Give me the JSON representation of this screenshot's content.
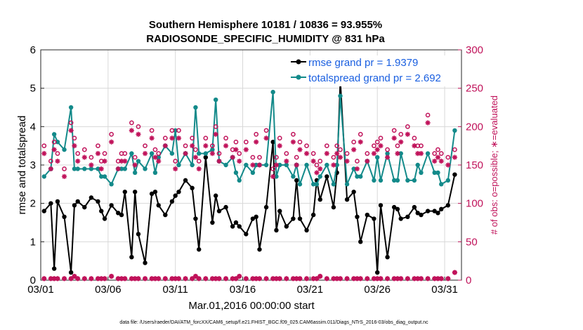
{
  "chart_data": {
    "type": "line",
    "title": "Southern Hemisphere 10181 / 10836 = 93.955%",
    "subtitle": "RADIOSONDE_SPECIFIC_HUMIDITY @ 831 hPa",
    "xlabel": "Mar.01,2016 00:00:00 start",
    "ylabel": "rmse and totalspread",
    "y2label": "# of obs: o=possible; ∗=evaluated",
    "footer": "data file: /Users/raeder/DAI/ATM_forcXX/CAM6_setup/f.e21.FHIST_BGC.f09_025.CAM6assim.011/Diags_NTrS_2016-03/obs_diag_output.nc",
    "x_tick_labels": [
      "03/01",
      "03/06",
      "03/11",
      "03/16",
      "03/21",
      "03/26",
      "03/31"
    ],
    "x_tick_days": [
      1,
      6,
      11,
      16,
      21,
      26,
      31
    ],
    "xlim": [
      1,
      32.25
    ],
    "ylim": [
      0,
      6
    ],
    "y_ticks": [
      "0",
      "1",
      "2",
      "3",
      "4",
      "5",
      "6"
    ],
    "y2lim": [
      0,
      300
    ],
    "y2_ticks": [
      "0",
      "50",
      "100",
      "150",
      "200",
      "250",
      "300"
    ],
    "grid": true,
    "legend": [
      {
        "label": "rmse grand pr = 1.9379",
        "color": "#000000"
      },
      {
        "label": "totalspread grand pr = 2.692",
        "color": "#138a8a"
      }
    ],
    "legend_position": "top-right",
    "x": [
      1.25,
      1.75,
      2.0,
      2.25,
      2.75,
      3.25,
      3.5,
      3.75,
      4.25,
      4.75,
      5.25,
      5.5,
      5.75,
      6.25,
      6.75,
      7.0,
      7.25,
      7.75,
      8.0,
      8.25,
      8.75,
      9.25,
      9.5,
      9.75,
      10.25,
      10.75,
      11.0,
      11.25,
      11.75,
      12.25,
      12.5,
      12.75,
      13.25,
      13.75,
      14.0,
      14.25,
      14.75,
      15.25,
      15.5,
      15.75,
      16.25,
      16.75,
      17.0,
      17.25,
      17.75,
      18.25,
      18.5,
      18.75,
      19.25,
      19.75,
      20.0,
      20.25,
      20.75,
      21.25,
      21.5,
      21.75,
      22.25,
      22.75,
      23.0,
      23.25,
      23.75,
      24.25,
      24.5,
      24.75,
      25.25,
      25.75,
      26.0,
      26.25,
      26.75,
      27.25,
      27.5,
      27.75,
      28.25,
      28.75,
      29.0,
      29.25,
      29.75,
      30.25,
      30.5,
      30.75,
      31.25,
      31.75
    ],
    "series": [
      {
        "name": "rmse",
        "color": "#000000",
        "values": [
          1.8,
          2.0,
          0.3,
          2.05,
          1.65,
          0.2,
          1.95,
          2.05,
          1.9,
          2.15,
          2.05,
          1.8,
          1.6,
          1.95,
          1.75,
          1.7,
          2.3,
          0.6,
          2.3,
          1.2,
          0.45,
          2.25,
          2.3,
          1.95,
          1.7,
          2.05,
          2.2,
          2.3,
          2.6,
          2.4,
          1.6,
          0.8,
          3.2,
          1.5,
          2.2,
          1.8,
          1.9,
          1.4,
          1.5,
          1.4,
          1.2,
          1.6,
          1.65,
          0.8,
          1.9,
          3.6,
          1.3,
          1.8,
          1.4,
          1.6,
          2.6,
          1.6,
          1.3,
          1.7,
          2.6,
          2.1,
          2.7,
          1.9,
          2.8,
          5.2,
          2.1,
          2.3,
          1.65,
          1.0,
          1.7,
          1.6,
          0.2,
          1.95,
          0.6,
          1.9,
          1.85,
          1.6,
          1.65,
          1.9,
          1.75,
          1.7,
          1.8,
          1.8,
          1.75,
          1.85,
          1.95,
          2.75
        ]
      },
      {
        "name": "totalspread",
        "color": "#138a8a",
        "values": [
          2.7,
          2.9,
          3.8,
          3.6,
          3.4,
          4.5,
          2.9,
          2.9,
          2.9,
          2.9,
          2.9,
          2.7,
          2.7,
          2.5,
          2.9,
          2.9,
          2.9,
          3.3,
          2.8,
          3.1,
          2.9,
          3.3,
          2.8,
          3.2,
          3.5,
          3.3,
          3.9,
          3.0,
          3.3,
          3.0,
          4.5,
          3.3,
          3.3,
          3.4,
          4.7,
          3.1,
          3.0,
          3.2,
          2.8,
          2.6,
          3.0,
          2.8,
          3.0,
          3.0,
          3.0,
          4.9,
          2.7,
          3.0,
          3.0,
          2.7,
          3.0,
          2.5,
          3.0,
          2.5,
          2.5,
          2.7,
          3.0,
          2.5,
          3.0,
          4.8,
          2.5,
          2.9,
          2.7,
          2.7,
          3.1,
          2.6,
          3.2,
          2.6,
          3.3,
          2.6,
          2.6,
          3.3,
          2.6,
          2.6,
          3.0,
          2.8,
          3.3,
          2.8,
          2.8,
          2.5,
          2.6,
          3.9
        ]
      },
      {
        "name": "obs possible",
        "axis": "right",
        "color": "#c0125a",
        "marker": "o",
        "values": [
          175,
          155,
          180,
          165,
          145,
          205,
          185,
          165,
          170,
          160,
          175,
          155,
          165,
          190,
          155,
          165,
          165,
          205,
          160,
          200,
          175,
          195,
          170,
          165,
          185,
          195,
          155,
          195,
          175,
          185,
          170,
          155,
          185,
          175,
          200,
          165,
          185,
          170,
          180,
          165,
          180,
          160,
          190,
          160,
          195,
          145,
          160,
          185,
          165,
          190,
          160,
          180,
          175,
          165,
          150,
          155,
          175,
          160,
          175,
          170,
          165,
          180,
          155,
          190,
          165,
          175,
          180,
          185,
          170,
          195,
          175,
          190,
          200,
          185,
          175,
          175,
          215,
          165,
          170,
          165,
          160,
          170
        ]
      },
      {
        "name": "obs evaluated",
        "axis": "right",
        "color": "#c0125a",
        "marker": "*",
        "values": [
          165,
          145,
          170,
          155,
          135,
          195,
          175,
          155,
          160,
          150,
          165,
          145,
          155,
          180,
          145,
          155,
          155,
          195,
          150,
          190,
          165,
          185,
          160,
          155,
          175,
          185,
          145,
          185,
          165,
          175,
          160,
          145,
          175,
          165,
          190,
          155,
          175,
          160,
          170,
          155,
          170,
          150,
          180,
          150,
          185,
          135,
          150,
          175,
          155,
          180,
          150,
          170,
          165,
          155,
          140,
          145,
          165,
          150,
          165,
          160,
          155,
          170,
          145,
          180,
          155,
          165,
          170,
          175,
          160,
          185,
          165,
          180,
          190,
          175,
          165,
          165,
          205,
          155,
          160,
          155,
          150,
          160
        ]
      },
      {
        "name": "bottom possible",
        "axis": "right",
        "color": "#c0125a",
        "marker": "o",
        "values": [
          2,
          2,
          2,
          2,
          2,
          2,
          5,
          2,
          2,
          2,
          2,
          2,
          2,
          5,
          2,
          2,
          2,
          2,
          2,
          2,
          2,
          2,
          2,
          2,
          2,
          2,
          2,
          2,
          2,
          2,
          5,
          2,
          2,
          2,
          2,
          2,
          2,
          2,
          2,
          5,
          2,
          2,
          2,
          2,
          2,
          2,
          2,
          2,
          2,
          2,
          2,
          2,
          2,
          2,
          2,
          5,
          2,
          2,
          2,
          2,
          2,
          2,
          2,
          2,
          2,
          2,
          2,
          2,
          2,
          2,
          2,
          2,
          2,
          2,
          2,
          2,
          2,
          2,
          2,
          2,
          2,
          10
        ]
      },
      {
        "name": "bottom evaluated",
        "axis": "right",
        "color": "#c0125a",
        "marker": "*",
        "values": [
          2,
          2,
          2,
          2,
          2,
          2,
          5,
          2,
          2,
          2,
          2,
          2,
          2,
          5,
          2,
          2,
          2,
          2,
          2,
          2,
          2,
          2,
          2,
          2,
          2,
          2,
          2,
          2,
          2,
          2,
          5,
          2,
          2,
          2,
          2,
          2,
          2,
          2,
          2,
          5,
          2,
          2,
          2,
          2,
          2,
          2,
          2,
          2,
          2,
          2,
          2,
          2,
          2,
          2,
          2,
          5,
          2,
          2,
          2,
          2,
          2,
          2,
          2,
          2,
          2,
          2,
          2,
          2,
          2,
          2,
          2,
          2,
          2,
          2,
          2,
          2,
          2,
          2,
          2,
          2,
          2,
          10
        ]
      }
    ]
  }
}
